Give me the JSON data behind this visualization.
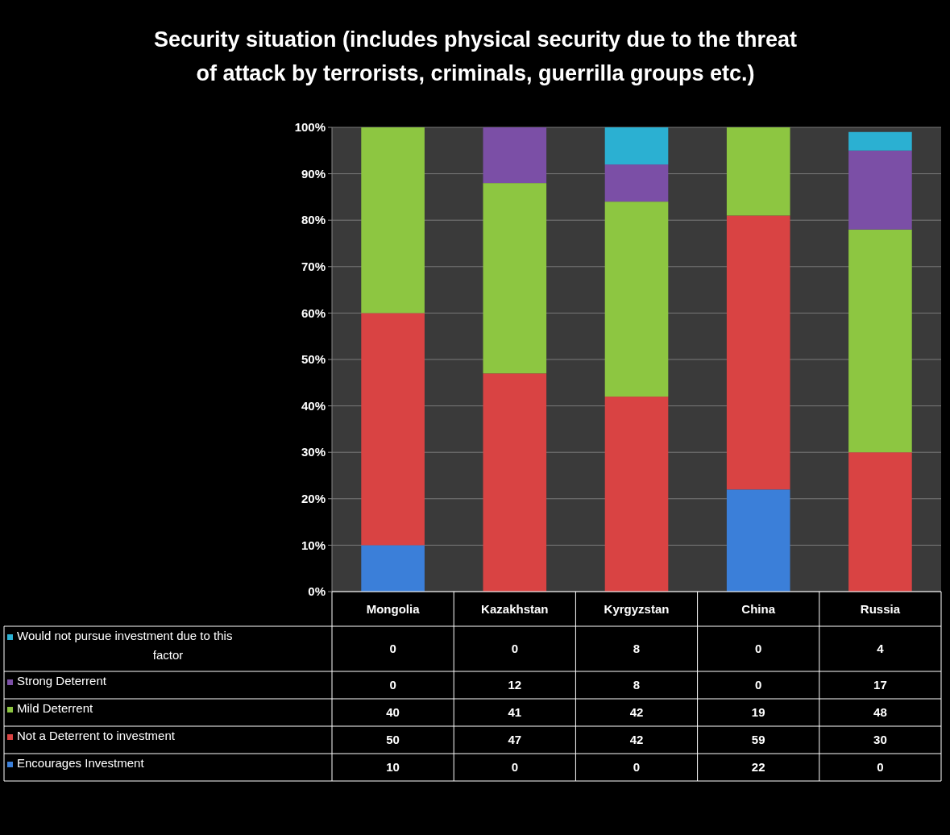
{
  "chart_data": {
    "type": "bar",
    "stacked": true,
    "title": "Security situation (includes physical security due to the threat of attack by terrorists, criminals, guerrilla groups etc.)",
    "categories": [
      "Mongolia",
      "Kazakhstan",
      "Kyrgyzstan",
      "China",
      "Russia"
    ],
    "series": [
      {
        "name": "Encourages Investment",
        "color": "#3b7fd9",
        "values": [
          10,
          0,
          0,
          22,
          0
        ]
      },
      {
        "name": "Not a Deterrent to investment",
        "color": "#d94343",
        "values": [
          50,
          47,
          42,
          59,
          30
        ]
      },
      {
        "name": "Mild Deterrent",
        "color": "#8dc641",
        "values": [
          40,
          41,
          42,
          19,
          48
        ]
      },
      {
        "name": "Strong Deterrent",
        "color": "#7b4fa6",
        "values": [
          0,
          12,
          8,
          0,
          17
        ]
      },
      {
        "name": "Would not pursue investment due to this factor",
        "color": "#2bb0d2",
        "values": [
          0,
          0,
          8,
          0,
          4
        ]
      }
    ],
    "ylim": [
      0,
      100
    ],
    "yticks": [
      {
        "value": 0,
        "label": "0%"
      },
      {
        "value": 10,
        "label": "10%"
      },
      {
        "value": 20,
        "label": "20%"
      },
      {
        "value": 30,
        "label": "30%"
      },
      {
        "value": 40,
        "label": "40%"
      },
      {
        "value": 50,
        "label": "50%"
      },
      {
        "value": 60,
        "label": "60%"
      },
      {
        "value": 70,
        "label": "70%"
      },
      {
        "value": 80,
        "label": "80%"
      },
      {
        "value": 90,
        "label": "90%"
      },
      {
        "value": 100,
        "label": "100%"
      }
    ],
    "grid": "y",
    "legend": "bottom",
    "data_labels": true
  }
}
